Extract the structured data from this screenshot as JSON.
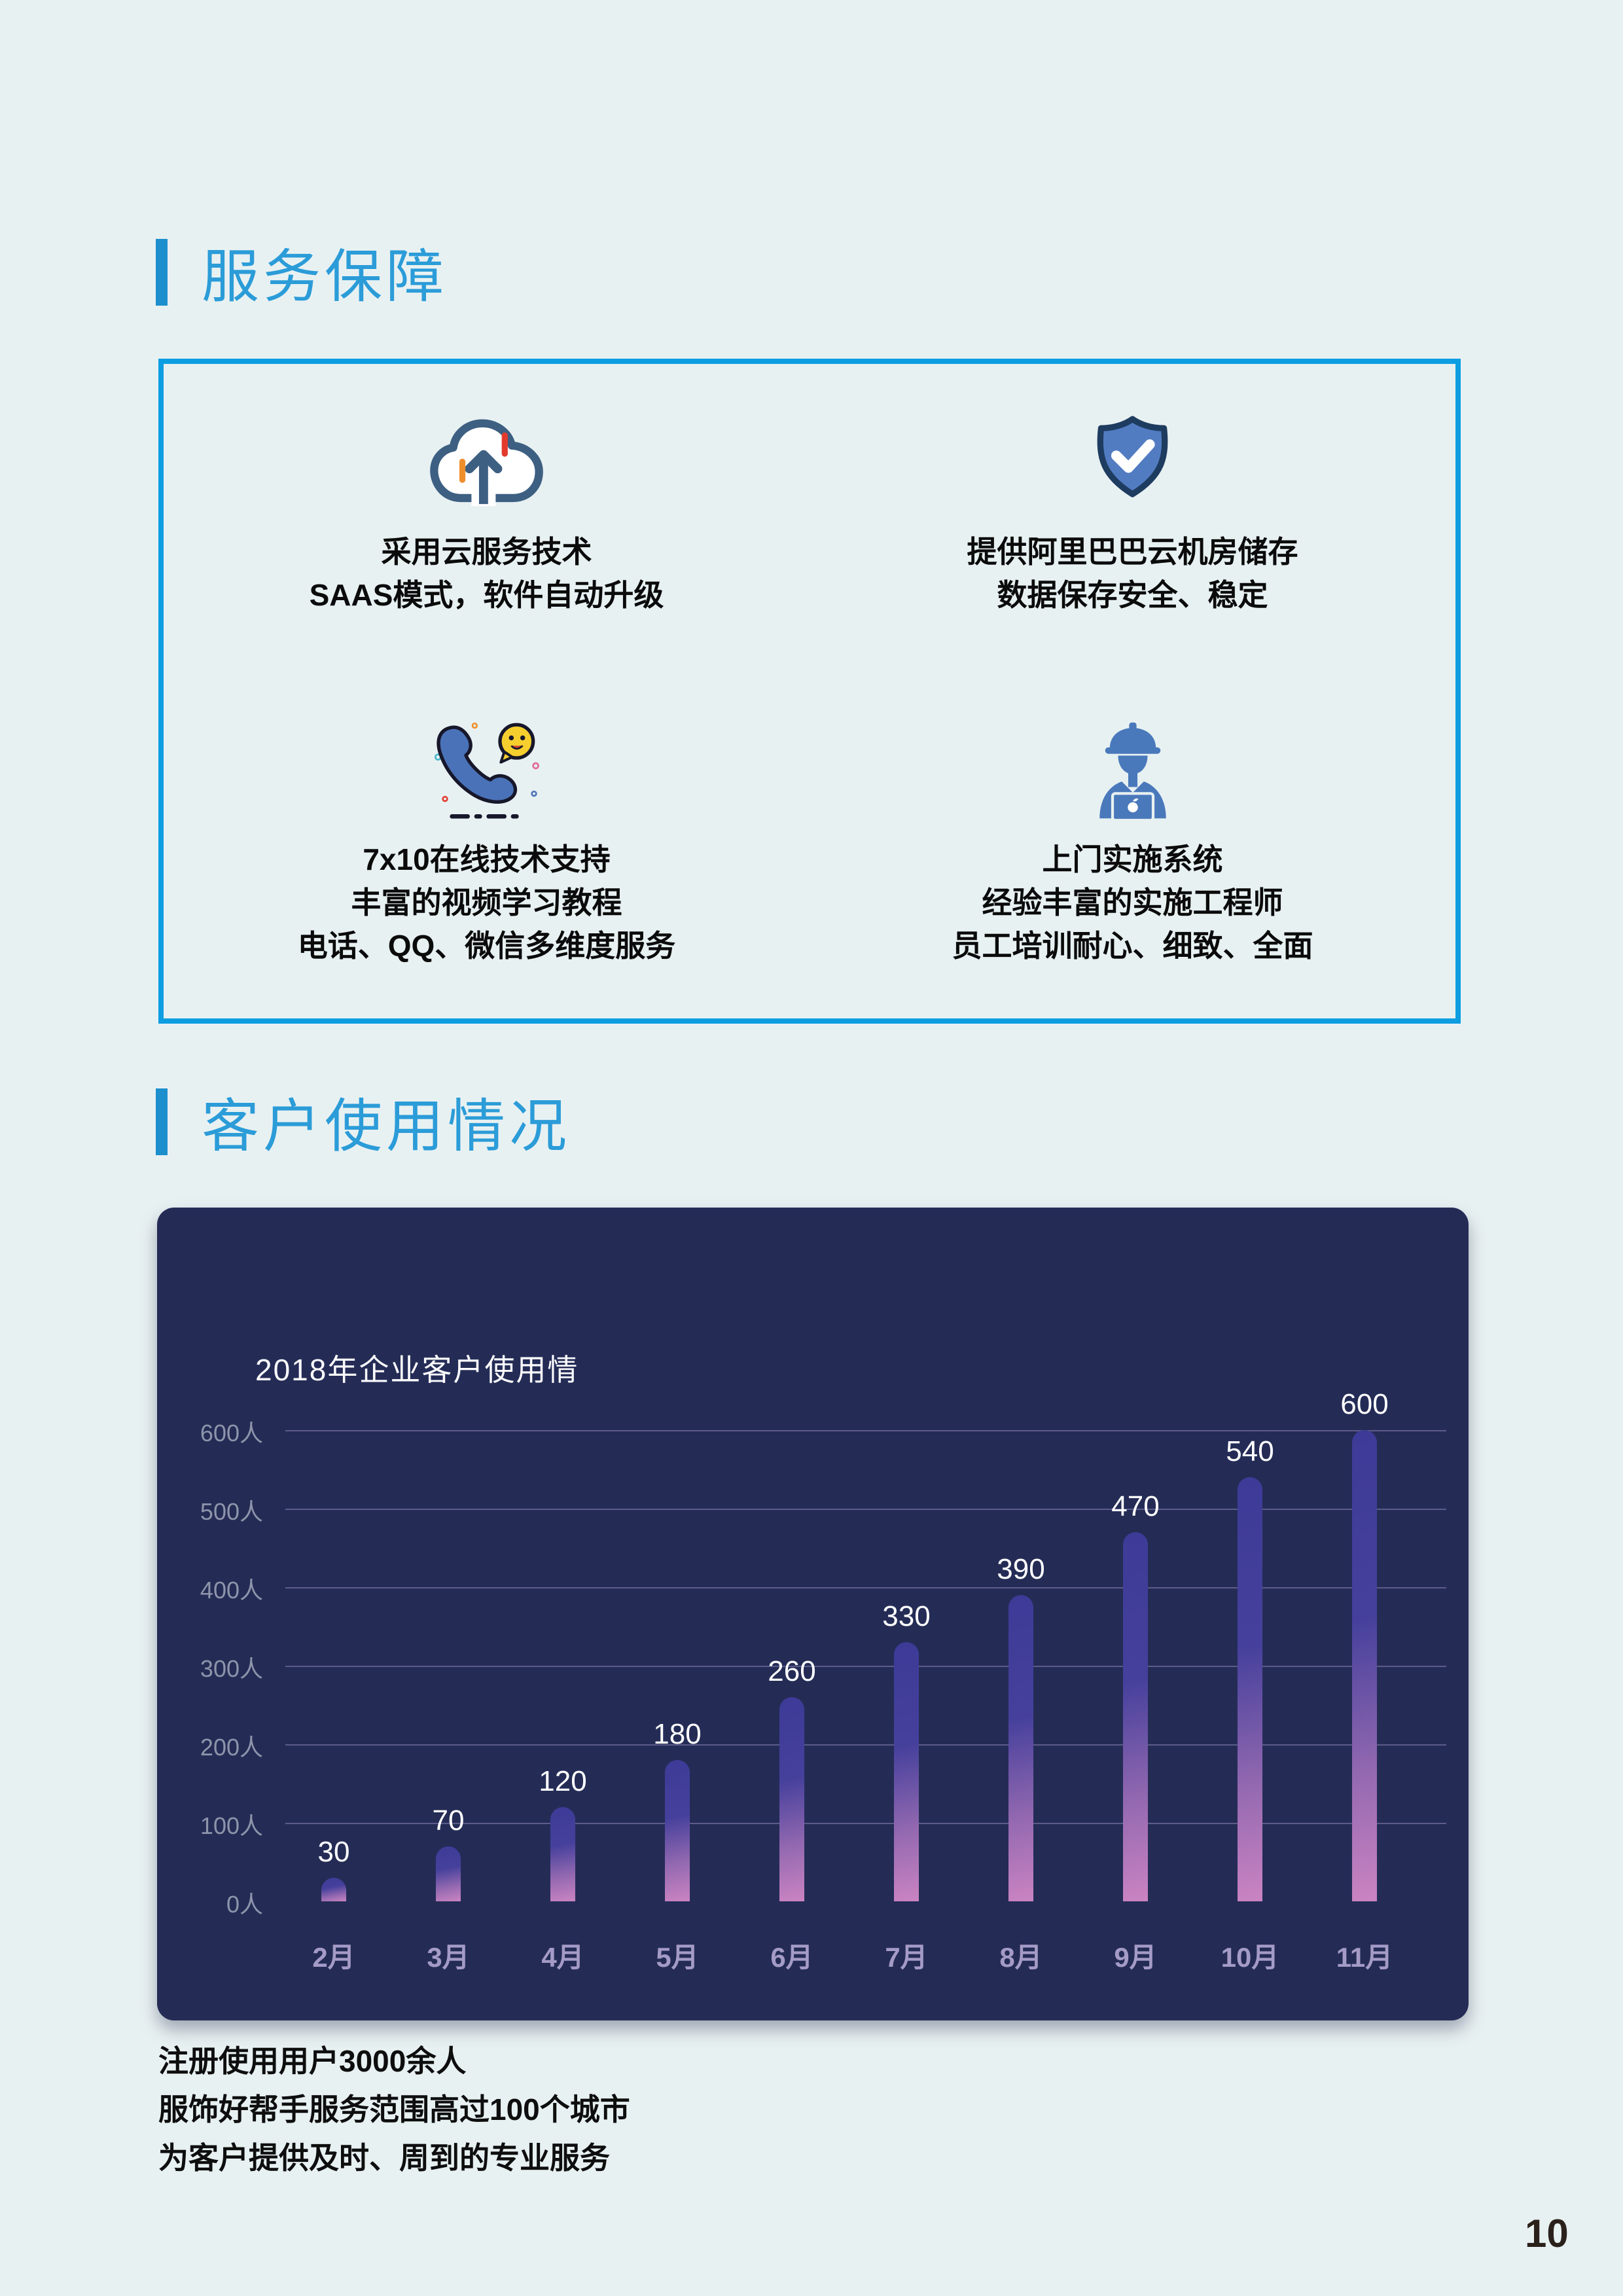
{
  "page": {
    "background": "#e8f1f2",
    "page_number": "10"
  },
  "theme": {
    "title_blue": "#2b9cd8",
    "accent_bar_blue": "#1d8fcd",
    "box_border_blue": "#0d9ee2",
    "panel_navy": "#242c56",
    "bar_gradient": [
      "#3d3b97",
      "#9268b0",
      "#cb84c2"
    ],
    "icon_blue": "#4a79bb",
    "icon_outline": "#3d5f82"
  },
  "section1": {
    "title": "服务保障"
  },
  "features": [
    {
      "icon": "cloud-upload-icon",
      "lines": [
        "采用云服务技术",
        "SAAS模式，软件自动升级"
      ]
    },
    {
      "icon": "shield-check-icon",
      "lines": [
        "提供阿里巴巴云机房储存",
        "数据保存安全、稳定"
      ]
    },
    {
      "icon": "phone-support-icon",
      "lines": [
        "7x10在线技术支持",
        "丰富的视频学习教程",
        "电话、QQ、微信多维度服务"
      ]
    },
    {
      "icon": "engineer-icon",
      "lines": [
        "上门实施系统",
        "经验丰富的实施工程师",
        "员工培训耐心、细致、全面"
      ]
    }
  ],
  "section2": {
    "title": "客户使用情况"
  },
  "chart_data": {
    "type": "bar",
    "title": "2018年企业客户使用情",
    "categories": [
      "2月",
      "3月",
      "4月",
      "5月",
      "6月",
      "7月",
      "8月",
      "9月",
      "10月",
      "11月"
    ],
    "values": [
      30,
      70,
      120,
      180,
      260,
      330,
      390,
      470,
      540,
      600
    ],
    "y_ticks": [
      600,
      500,
      400,
      300,
      200,
      100,
      0
    ],
    "y_tick_suffix": "人",
    "ylim": [
      0,
      600
    ],
    "grid": true,
    "legend": "none",
    "xlabel": "",
    "ylabel": ""
  },
  "footer": {
    "lines": [
      "注册使用用户3000余人",
      "服饰好帮手服务范围高过100个城市",
      "为客户提供及时、周到的专业服务"
    ]
  }
}
